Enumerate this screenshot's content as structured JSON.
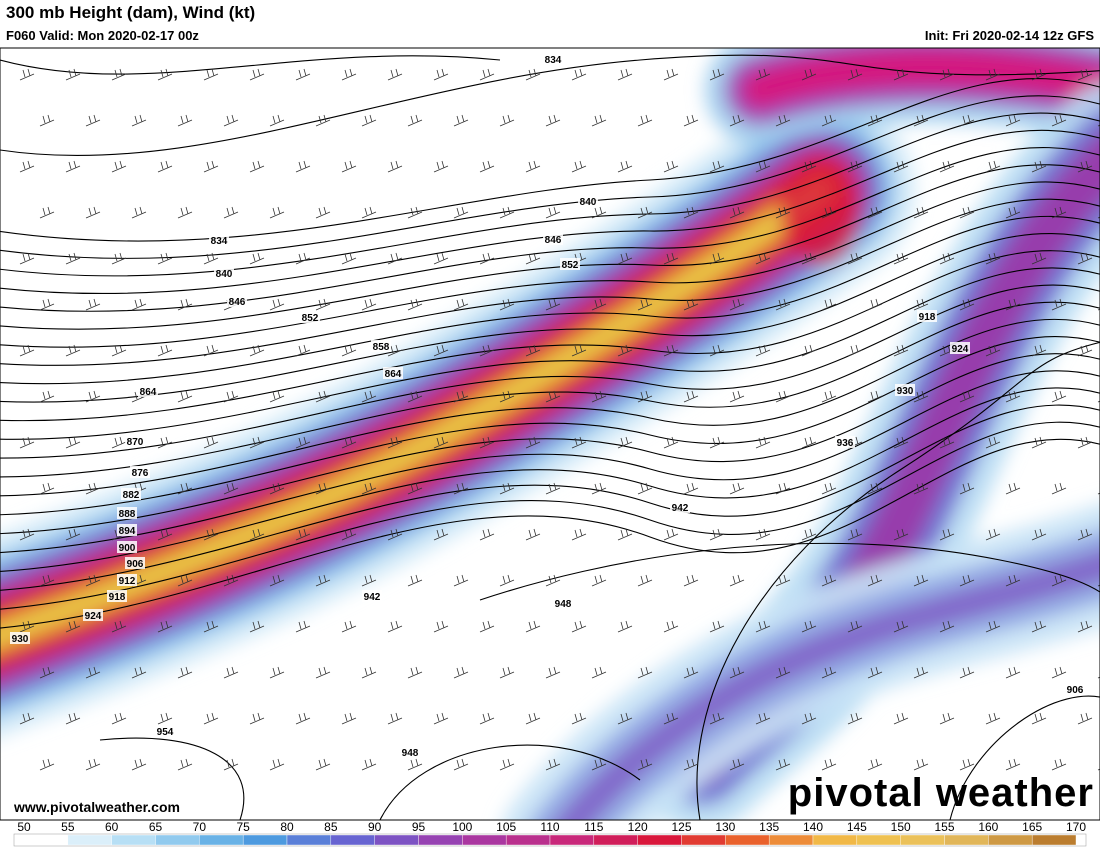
{
  "header": {
    "title": "300 mb Height (dam), Wind (kt)",
    "valid": "F060 Valid: Mon 2020-02-17 00z",
    "init": "Init: Fri 2020-02-14 12z GFS"
  },
  "contour_labels": [
    834,
    840,
    846,
    852,
    834,
    840,
    846,
    852,
    858,
    864,
    864,
    870,
    876,
    882,
    888,
    894,
    900,
    906,
    912,
    918,
    924,
    930,
    918,
    924,
    930,
    936,
    942,
    942,
    948,
    954,
    948,
    906
  ],
  "colorbar": {
    "ticks": [
      50,
      55,
      60,
      65,
      70,
      75,
      80,
      85,
      90,
      95,
      100,
      105,
      110,
      115,
      120,
      125,
      130,
      135,
      140,
      145,
      150,
      155,
      160,
      165,
      170
    ]
  },
  "watermark": "pivotal weather",
  "website": "www.pivotalweather.com"
}
